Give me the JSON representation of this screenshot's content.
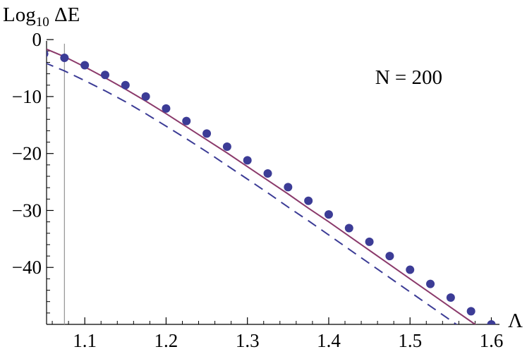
{
  "chart_data": {
    "type": "scatter",
    "title": "",
    "annotation": "N = 200",
    "ylabel": {
      "base": "Log",
      "subscript": "10",
      "rest": " ΔE"
    },
    "xlabel": "Λ",
    "xlim": [
      1.053,
      1.61
    ],
    "ylim": [
      -50,
      2
    ],
    "x_ticks": [
      "1.1",
      "1.2",
      "1.3",
      "1.4",
      "1.5",
      "1.6"
    ],
    "x_tick_values": [
      1.1,
      1.2,
      1.3,
      1.4,
      1.5,
      1.6
    ],
    "y_ticks": [
      "0",
      "−10",
      "−20",
      "−30",
      "−40"
    ],
    "y_tick_values": [
      0,
      -10,
      -20,
      -30,
      -40
    ],
    "reference_line_x": 1.075,
    "grid": false,
    "legend": "none",
    "series": [
      {
        "kind": "points",
        "color": "#3c3c96",
        "x": [
          1.05,
          1.075,
          1.1,
          1.125,
          1.15,
          1.175,
          1.2,
          1.225,
          1.25,
          1.275,
          1.3,
          1.325,
          1.35,
          1.375,
          1.4,
          1.425,
          1.45,
          1.475,
          1.5,
          1.525,
          1.55,
          1.575,
          1.6
        ],
        "y": [
          -2.5,
          -3.2,
          -4.5,
          -6.2,
          -8.0,
          -10.0,
          -12.1,
          -14.3,
          -16.5,
          -18.8,
          -21.2,
          -23.5,
          -25.9,
          -28.3,
          -30.7,
          -33.1,
          -35.5,
          -38.0,
          -40.4,
          -42.9,
          -45.3,
          -47.7,
          -50.0
        ]
      },
      {
        "kind": "solid-line",
        "color": "#8b3a6b",
        "x": [
          1.05,
          1.075,
          1.1,
          1.125,
          1.15,
          1.175,
          1.2,
          1.225,
          1.25,
          1.275,
          1.3,
          1.325,
          1.35,
          1.375,
          1.4,
          1.425,
          1.45,
          1.475,
          1.5,
          1.525,
          1.55,
          1.575,
          1.6
        ],
        "y": [
          -1.5,
          -3.0,
          -4.8,
          -6.7,
          -8.7,
          -10.8,
          -13.0,
          -15.3,
          -17.6,
          -19.9,
          -22.3,
          -24.7,
          -27.1,
          -29.6,
          -32.0,
          -34.5,
          -37.0,
          -39.5,
          -42.0,
          -44.5,
          -47.0,
          -49.5,
          -52.0
        ]
      },
      {
        "kind": "dashed-line",
        "color": "#3c3c96",
        "x": [
          1.05,
          1.075,
          1.1,
          1.125,
          1.15,
          1.175,
          1.2,
          1.225,
          1.25,
          1.275,
          1.3,
          1.325,
          1.35,
          1.375,
          1.4,
          1.425,
          1.45,
          1.475,
          1.5,
          1.525,
          1.55,
          1.575
        ],
        "y": [
          -4.0,
          -5.5,
          -7.2,
          -9.0,
          -10.9,
          -13.0,
          -15.2,
          -17.4,
          -19.7,
          -22.1,
          -24.5,
          -26.9,
          -29.4,
          -31.8,
          -34.3,
          -36.8,
          -39.3,
          -41.8,
          -44.3,
          -46.8,
          -49.3,
          -51.8
        ]
      }
    ]
  }
}
